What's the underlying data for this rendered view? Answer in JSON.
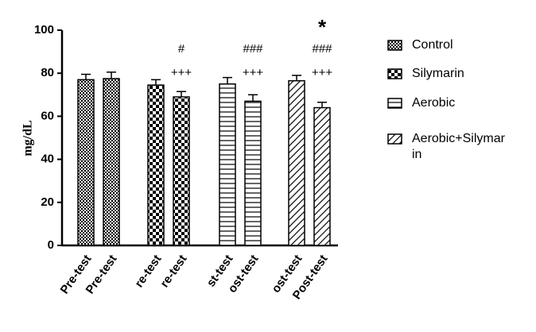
{
  "chart_data": {
    "type": "bar",
    "ylabel": "mg/dL",
    "ylim": [
      0,
      100
    ],
    "yticks": [
      0,
      20,
      40,
      60,
      80,
      100
    ],
    "grid": false,
    "color": "#000000",
    "series": [
      {
        "name": "Control",
        "pattern": "checker-fine",
        "categories": [
          "Pre-test",
          "Pre-test"
        ],
        "values": [
          77,
          77.5
        ],
        "errors": [
          2.5,
          3
        ],
        "annotations": [
          null,
          null
        ]
      },
      {
        "name": "Silymarin",
        "pattern": "checker",
        "categories": [
          "re-test",
          "re-test"
        ],
        "values": [
          74.5,
          69
        ],
        "errors": [
          2.5,
          2.5
        ],
        "annotations": [
          null,
          [
            "+++",
            "#"
          ]
        ]
      },
      {
        "name": "Aerobic",
        "pattern": "horizontal",
        "categories": [
          "st-test",
          "ost-test"
        ],
        "values": [
          75,
          67
        ],
        "errors": [
          3,
          3
        ],
        "annotations": [
          null,
          [
            "+++",
            "###"
          ]
        ]
      },
      {
        "name": "Aerobic+Silymarin",
        "pattern": "diagonal",
        "categories": [
          "ost-test",
          "Post-test"
        ],
        "values": [
          76.5,
          64
        ],
        "errors": [
          2.5,
          2.5
        ],
        "annotations": [
          null,
          [
            "+++",
            "###",
            "*"
          ]
        ]
      }
    ]
  }
}
